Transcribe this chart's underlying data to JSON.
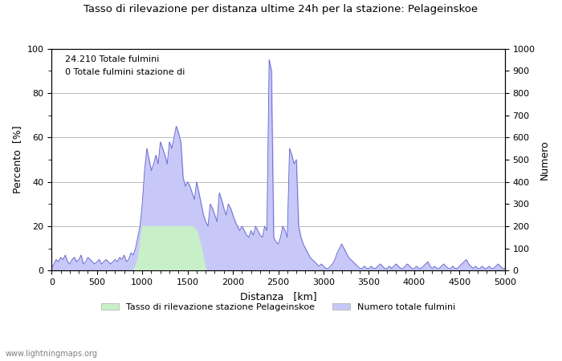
{
  "title": "Tasso di rilevazione per distanza ultime 24h per la stazione: Pelageinskoe",
  "annotation_line1": "24.210 Totale fulmini",
  "annotation_line2": "0 Totale fulmini stazione di",
  "xlabel": "Distanza   [km]",
  "ylabel_left": "Percento  [%]",
  "ylabel_right": "Numero",
  "xlim": [
    0,
    5000
  ],
  "ylim_left": [
    0,
    100
  ],
  "ylim_right": [
    0,
    1000
  ],
  "yticks_left": [
    0,
    20,
    40,
    60,
    80,
    100
  ],
  "yticks_right": [
    0,
    100,
    200,
    300,
    400,
    500,
    600,
    700,
    800,
    900,
    1000
  ],
  "xticks": [
    0,
    500,
    1000,
    1500,
    2000,
    2500,
    3000,
    3500,
    4000,
    4500,
    5000
  ],
  "legend_green": "Tasso di rilevazione stazione Pelageinskoe",
  "legend_blue": "Numero totale fulmini",
  "watermark": "www.lightningmaps.org",
  "fill_green_color": "#c8f0c8",
  "fill_blue_color": "#c8c8f8",
  "line_blue_color": "#6666cc",
  "background_color": "#ffffff",
  "grid_color": "#bbbbbb",
  "blue_x": [
    0,
    25,
    50,
    75,
    100,
    125,
    150,
    175,
    200,
    225,
    250,
    275,
    300,
    325,
    350,
    375,
    400,
    425,
    450,
    475,
    500,
    525,
    550,
    575,
    600,
    625,
    650,
    675,
    700,
    725,
    750,
    775,
    800,
    825,
    850,
    875,
    900,
    925,
    950,
    975,
    1000,
    1025,
    1050,
    1075,
    1100,
    1125,
    1150,
    1175,
    1200,
    1225,
    1250,
    1275,
    1300,
    1325,
    1350,
    1375,
    1400,
    1425,
    1450,
    1475,
    1500,
    1525,
    1550,
    1575,
    1600,
    1625,
    1650,
    1675,
    1700,
    1725,
    1750,
    1775,
    1800,
    1825,
    1850,
    1875,
    1900,
    1925,
    1950,
    1975,
    2000,
    2025,
    2050,
    2075,
    2100,
    2125,
    2150,
    2175,
    2200,
    2225,
    2250,
    2275,
    2300,
    2325,
    2350,
    2375,
    2400,
    2425,
    2450,
    2475,
    2500,
    2525,
    2550,
    2575,
    2600,
    2625,
    2650,
    2675,
    2700,
    2725,
    2750,
    2775,
    2800,
    2825,
    2850,
    2875,
    2900,
    2925,
    2950,
    2975,
    3000,
    3025,
    3050,
    3075,
    3100,
    3125,
    3150,
    3175,
    3200,
    3225,
    3250,
    3275,
    3300,
    3325,
    3350,
    3375,
    3400,
    3425,
    3450,
    3475,
    3500,
    3525,
    3550,
    3575,
    3600,
    3625,
    3650,
    3675,
    3700,
    3725,
    3750,
    3775,
    3800,
    3825,
    3850,
    3875,
    3900,
    3925,
    3950,
    3975,
    4000,
    4025,
    4050,
    4075,
    4100,
    4125,
    4150,
    4175,
    4200,
    4225,
    4250,
    4275,
    4300,
    4325,
    4350,
    4375,
    4400,
    4425,
    4450,
    4475,
    4500,
    4525,
    4550,
    4575,
    4600,
    4625,
    4650,
    4675,
    4700,
    4725,
    4750,
    4775,
    4800,
    4825,
    4850,
    4875,
    4900,
    4925,
    4950,
    4975,
    5000
  ],
  "blue_y": [
    1,
    3,
    5,
    4,
    6,
    5,
    7,
    4,
    3,
    5,
    6,
    4,
    5,
    7,
    3,
    4,
    6,
    5,
    4,
    3,
    4,
    5,
    3,
    4,
    5,
    4,
    3,
    4,
    5,
    4,
    6,
    5,
    7,
    4,
    5,
    8,
    7,
    10,
    15,
    20,
    30,
    45,
    55,
    50,
    45,
    48,
    52,
    48,
    58,
    55,
    52,
    48,
    58,
    55,
    60,
    65,
    62,
    58,
    42,
    38,
    40,
    38,
    35,
    32,
    40,
    35,
    30,
    25,
    22,
    20,
    30,
    28,
    25,
    22,
    35,
    32,
    28,
    25,
    30,
    28,
    25,
    22,
    20,
    18,
    20,
    18,
    16,
    15,
    18,
    16,
    20,
    18,
    16,
    15,
    20,
    18,
    95,
    90,
    15,
    13,
    12,
    15,
    20,
    18,
    15,
    55,
    52,
    48,
    50,
    20,
    15,
    12,
    10,
    8,
    6,
    5,
    4,
    3,
    2,
    3,
    2,
    1,
    1,
    2,
    3,
    5,
    8,
    10,
    12,
    10,
    8,
    6,
    5,
    4,
    3,
    2,
    1,
    1,
    2,
    1,
    1,
    2,
    1,
    1,
    2,
    3,
    2,
    1,
    1,
    2,
    1,
    2,
    3,
    2,
    1,
    1,
    2,
    3,
    2,
    1,
    1,
    2,
    1,
    1,
    2,
    3,
    4,
    2,
    1,
    2,
    1,
    1,
    2,
    3,
    2,
    1,
    1,
    2,
    1,
    1,
    2,
    3,
    4,
    5,
    3,
    2,
    1,
    2,
    1,
    1,
    2,
    1,
    1,
    2,
    1,
    1,
    2,
    3,
    2,
    1,
    1
  ],
  "green_x": [
    900,
    950,
    1000,
    1050,
    1100,
    1150,
    1200,
    1250,
    1300,
    1350,
    1400,
    1450,
    1500,
    1550,
    1600,
    1650,
    1700
  ],
  "green_y": [
    0,
    5,
    20,
    20,
    20,
    20,
    20,
    20,
    20,
    20,
    20,
    20,
    20,
    20,
    18,
    10,
    0
  ]
}
